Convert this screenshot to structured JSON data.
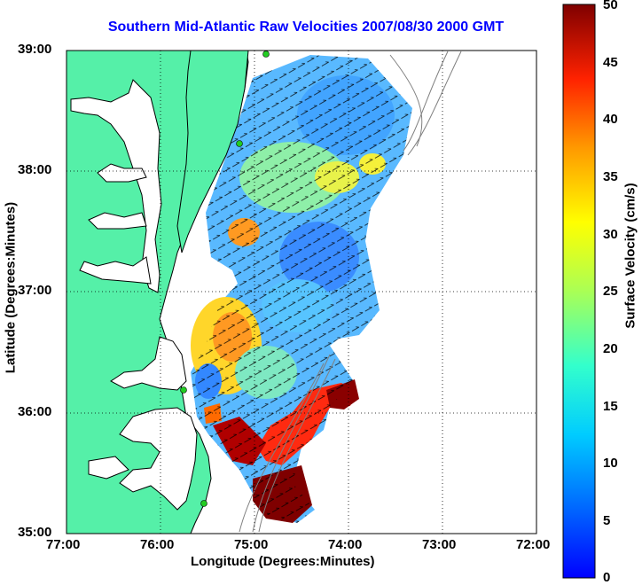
{
  "chart_data": {
    "type": "heatmap",
    "title": "Southern Mid-Atlantic Raw Velocities 2007/08/30 2000 GMT",
    "xlabel": "Longitude (Degrees:Minutes)",
    "ylabel": "Latitude (Degrees:Minutes)",
    "x_ticks": [
      "77:00",
      "76:00",
      "75:00",
      "74:00",
      "73:00",
      "72:00"
    ],
    "y_ticks": [
      "39:00",
      "38:00",
      "37:00",
      "36:00",
      "35:00"
    ],
    "xlim_deg_west": [
      77,
      72
    ],
    "ylim_deg_north": [
      35,
      39
    ],
    "grid": true,
    "colorbar": {
      "label": "Surface Velocity (cm/s)",
      "ticks": [
        "50",
        "45",
        "40",
        "35",
        "30",
        "25",
        "20",
        "15",
        "10",
        "5",
        "0"
      ],
      "range": [
        0,
        50
      ],
      "colormap": "jet"
    },
    "colors": {
      "land": "#55f0a8",
      "coastline": "#000000",
      "bathymetry": "#808080",
      "title": "#0000ff",
      "station": "#22cc22"
    }
  }
}
